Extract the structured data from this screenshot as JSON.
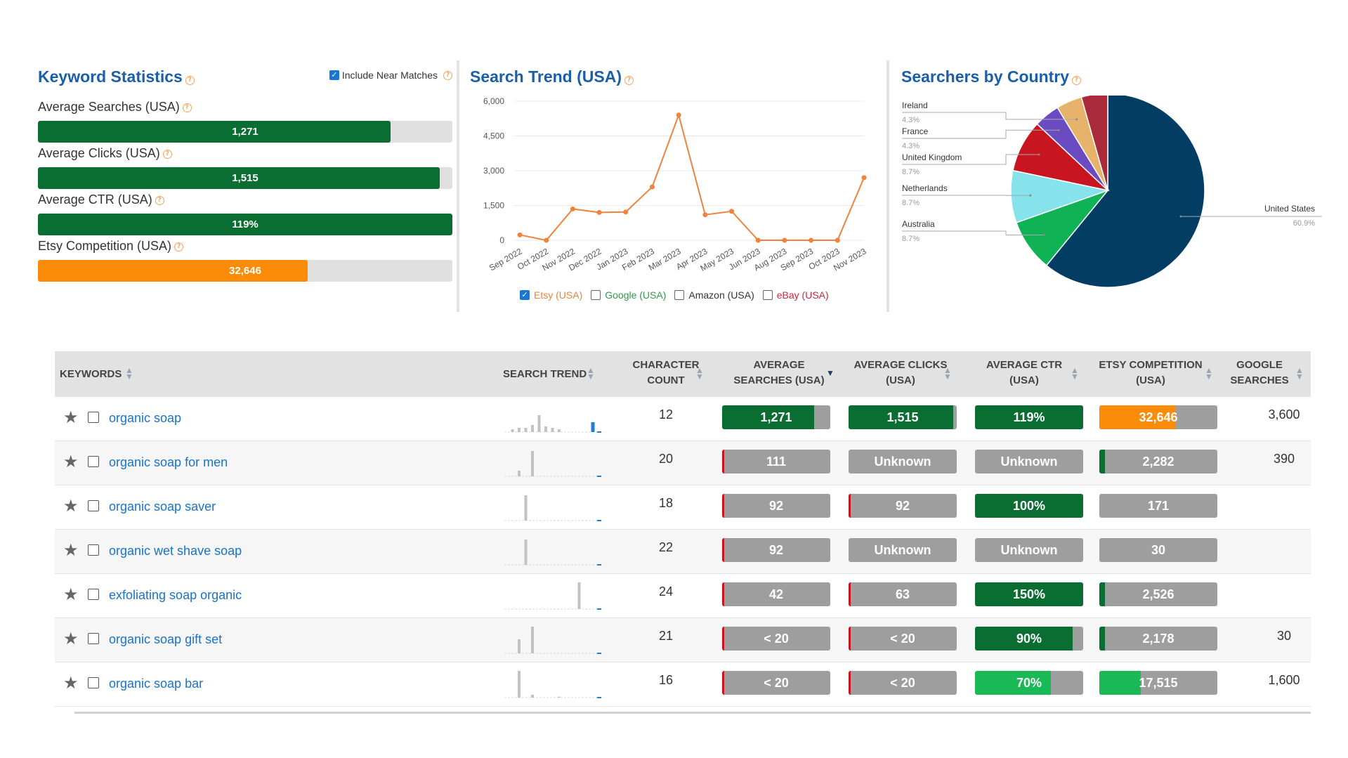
{
  "keyword_stats": {
    "title": "Keyword Statistics",
    "near_matches_label": "Include Near Matches",
    "near_matches_checked": true,
    "stats": [
      {
        "label": "Average Searches (USA)",
        "value": "1,271",
        "fill": 0.85,
        "color": "#0a6e33"
      },
      {
        "label": "Average Clicks (USA)",
        "value": "1,515",
        "fill": 0.97,
        "color": "#0a6e33"
      },
      {
        "label": "Average CTR (USA)",
        "value": "119%",
        "fill": 1.0,
        "color": "#0a6e33"
      },
      {
        "label": "Etsy Competition (USA)",
        "value": "32,646",
        "fill": 0.65,
        "color": "#fb8c0a"
      }
    ]
  },
  "search_trend": {
    "title": "Search Trend (USA)",
    "legend": [
      {
        "label": "Etsy (USA)",
        "checked": true,
        "color": "#f0823c"
      },
      {
        "label": "Google (USA)",
        "checked": false,
        "color": "#2e9b4a"
      },
      {
        "label": "Amazon (USA)",
        "checked": false,
        "color": "#333333"
      },
      {
        "label": "eBay (USA)",
        "checked": false,
        "color": "#d8233b"
      }
    ]
  },
  "chart_data": [
    {
      "type": "line",
      "title": "Search Trend (USA)",
      "x": [
        "Sep 2022",
        "Oct 2022",
        "Nov 2022",
        "Dec 2022",
        "Jan 2023",
        "Feb 2023",
        "Mar 2023",
        "Apr 2023",
        "May 2023",
        "Jun 2023",
        "Aug 2023",
        "Sep 2023",
        "Oct 2023",
        "Nov 2023"
      ],
      "series": [
        {
          "name": "Etsy (USA)",
          "values": [
            230,
            0,
            1350,
            1200,
            1220,
            2300,
            5400,
            1100,
            1250,
            0,
            0,
            0,
            0,
            2700
          ],
          "color": "#f0823c"
        }
      ],
      "yticks": [
        "6,000",
        "4,500",
        "3,000",
        "1,500",
        "0"
      ],
      "ytick_values": [
        6000,
        4500,
        3000,
        1500,
        0
      ],
      "ylim": [
        0,
        6000
      ]
    },
    {
      "type": "pie",
      "title": "Searchers by Country",
      "slices": [
        {
          "label": "United States",
          "pct_label": "60.9%",
          "value": 60.9,
          "color": "#033d63"
        },
        {
          "label": "Australia",
          "pct_label": "8.7%",
          "value": 8.7,
          "color": "#10b256"
        },
        {
          "label": "Netherlands",
          "pct_label": "8.7%",
          "value": 8.7,
          "color": "#86e3eb"
        },
        {
          "label": "United Kingdom",
          "pct_label": "8.7%",
          "value": 8.7,
          "color": "#c8151f"
        },
        {
          "label": "France",
          "pct_label": "4.3%",
          "value": 4.3,
          "color": "#6a4bc1"
        },
        {
          "label": "Ireland",
          "pct_label": "4.3%",
          "value": 4.3,
          "color": "#e7b36a"
        },
        {
          "label": "",
          "pct_label": "",
          "value": 4.4,
          "color": "#a82a3b"
        }
      ]
    }
  ],
  "searchers_by_country": {
    "title": "Searchers by Country"
  },
  "table": {
    "headers": {
      "keywords": "KEYWORDS",
      "search_trend": "SEARCH TREND",
      "char_count_1": "CHARACTER",
      "char_count_2": "COUNT",
      "avg_searches_1": "AVERAGE",
      "avg_searches_2": "SEARCHES (USA)",
      "avg_clicks_1": "AVERAGE CLICKS",
      "avg_clicks_2": "(USA)",
      "avg_ctr_1": "AVERAGE CTR",
      "avg_ctr_2": "(USA)",
      "etsy_comp_1": "ETSY COMPETITION",
      "etsy_comp_2": "(USA)",
      "google_1": "GOOGLE",
      "google_2": "SEARCHES"
    },
    "rows": [
      {
        "keyword": "organic soap",
        "chars": "12",
        "searches": {
          "text": "1,271",
          "fill": 0.85,
          "color": "#0a6e33"
        },
        "clicks": {
          "text": "1,515",
          "fill": 0.97,
          "color": "#0a6e33"
        },
        "ctr": {
          "text": "119%",
          "fill": 1.0,
          "color": "#0a6e33"
        },
        "comp": {
          "text": "32,646",
          "fill": 0.65,
          "color": "#fb8c0a"
        },
        "google": "3,600",
        "spark": [
          0,
          0.1,
          0.15,
          0.15,
          0.25,
          0.6,
          0.2,
          0.15,
          0.1,
          0,
          0,
          0,
          0,
          0.35
        ]
      },
      {
        "keyword": "organic soap for men",
        "chars": "20",
        "searches": {
          "text": "111",
          "fill": 0.02,
          "color": "#c8151f"
        },
        "clicks": {
          "text": "Unknown",
          "fill": 0,
          "color": "#c8151f"
        },
        "ctr": {
          "text": "Unknown",
          "fill": 0,
          "color": "#0a6e33"
        },
        "comp": {
          "text": "2,282",
          "fill": 0.05,
          "color": "#0a6e33"
        },
        "google": "390",
        "spark": [
          0,
          0,
          0.2,
          0,
          0.9,
          0,
          0,
          0,
          0,
          0,
          0,
          0,
          0,
          0
        ]
      },
      {
        "keyword": "organic soap saver",
        "chars": "18",
        "searches": {
          "text": "92",
          "fill": 0.02,
          "color": "#c8151f"
        },
        "clicks": {
          "text": "92",
          "fill": 0.02,
          "color": "#c8151f"
        },
        "ctr": {
          "text": "100%",
          "fill": 1.0,
          "color": "#0a6e33"
        },
        "comp": {
          "text": "171",
          "fill": 0,
          "color": "#0a6e33"
        },
        "google": "",
        "spark": [
          0,
          0,
          0,
          0.9,
          0,
          0,
          0,
          0,
          0,
          0,
          0,
          0,
          0,
          0
        ]
      },
      {
        "keyword": "organic wet shave soap",
        "chars": "22",
        "searches": {
          "text": "92",
          "fill": 0.02,
          "color": "#c8151f"
        },
        "clicks": {
          "text": "Unknown",
          "fill": 0,
          "color": "#c8151f"
        },
        "ctr": {
          "text": "Unknown",
          "fill": 0,
          "color": "#0a6e33"
        },
        "comp": {
          "text": "30",
          "fill": 0,
          "color": "#0a6e33"
        },
        "google": "",
        "spark": [
          0,
          0,
          0,
          0.9,
          0,
          0,
          0,
          0,
          0,
          0,
          0,
          0,
          0,
          0
        ]
      },
      {
        "keyword": "exfoliating soap organic",
        "chars": "24",
        "searches": {
          "text": "42",
          "fill": 0.02,
          "color": "#c8151f"
        },
        "clicks": {
          "text": "63",
          "fill": 0.02,
          "color": "#c8151f"
        },
        "ctr": {
          "text": "150%",
          "fill": 1.0,
          "color": "#0a6e33"
        },
        "comp": {
          "text": "2,526",
          "fill": 0.05,
          "color": "#0a6e33"
        },
        "google": "",
        "spark": [
          0,
          0,
          0,
          0,
          0,
          0,
          0,
          0,
          0,
          0,
          0,
          0.95,
          0,
          0
        ]
      },
      {
        "keyword": "organic soap gift set",
        "chars": "21",
        "searches": {
          "text": "< 20",
          "fill": 0.02,
          "color": "#c8151f"
        },
        "clicks": {
          "text": "< 20",
          "fill": 0.02,
          "color": "#c8151f"
        },
        "ctr": {
          "text": "90%",
          "fill": 0.9,
          "color": "#0a6e33"
        },
        "comp": {
          "text": "2,178",
          "fill": 0.05,
          "color": "#0a6e33"
        },
        "google": "30",
        "spark": [
          0,
          0,
          0.5,
          0,
          0.95,
          0,
          0,
          0,
          0,
          0,
          0,
          0,
          0,
          0
        ]
      },
      {
        "keyword": "organic soap bar",
        "chars": "16",
        "searches": {
          "text": "< 20",
          "fill": 0.02,
          "color": "#c8151f"
        },
        "clicks": {
          "text": "< 20",
          "fill": 0.02,
          "color": "#c8151f"
        },
        "ctr": {
          "text": "70%",
          "fill": 0.7,
          "color": "#19b955"
        },
        "comp": {
          "text": "17,515",
          "fill": 0.35,
          "color": "#19b955"
        },
        "google": "1,600",
        "spark": [
          0,
          0,
          0.95,
          0,
          0.1,
          0,
          0,
          0,
          0.03,
          0,
          0,
          0,
          0,
          0
        ]
      }
    ]
  }
}
